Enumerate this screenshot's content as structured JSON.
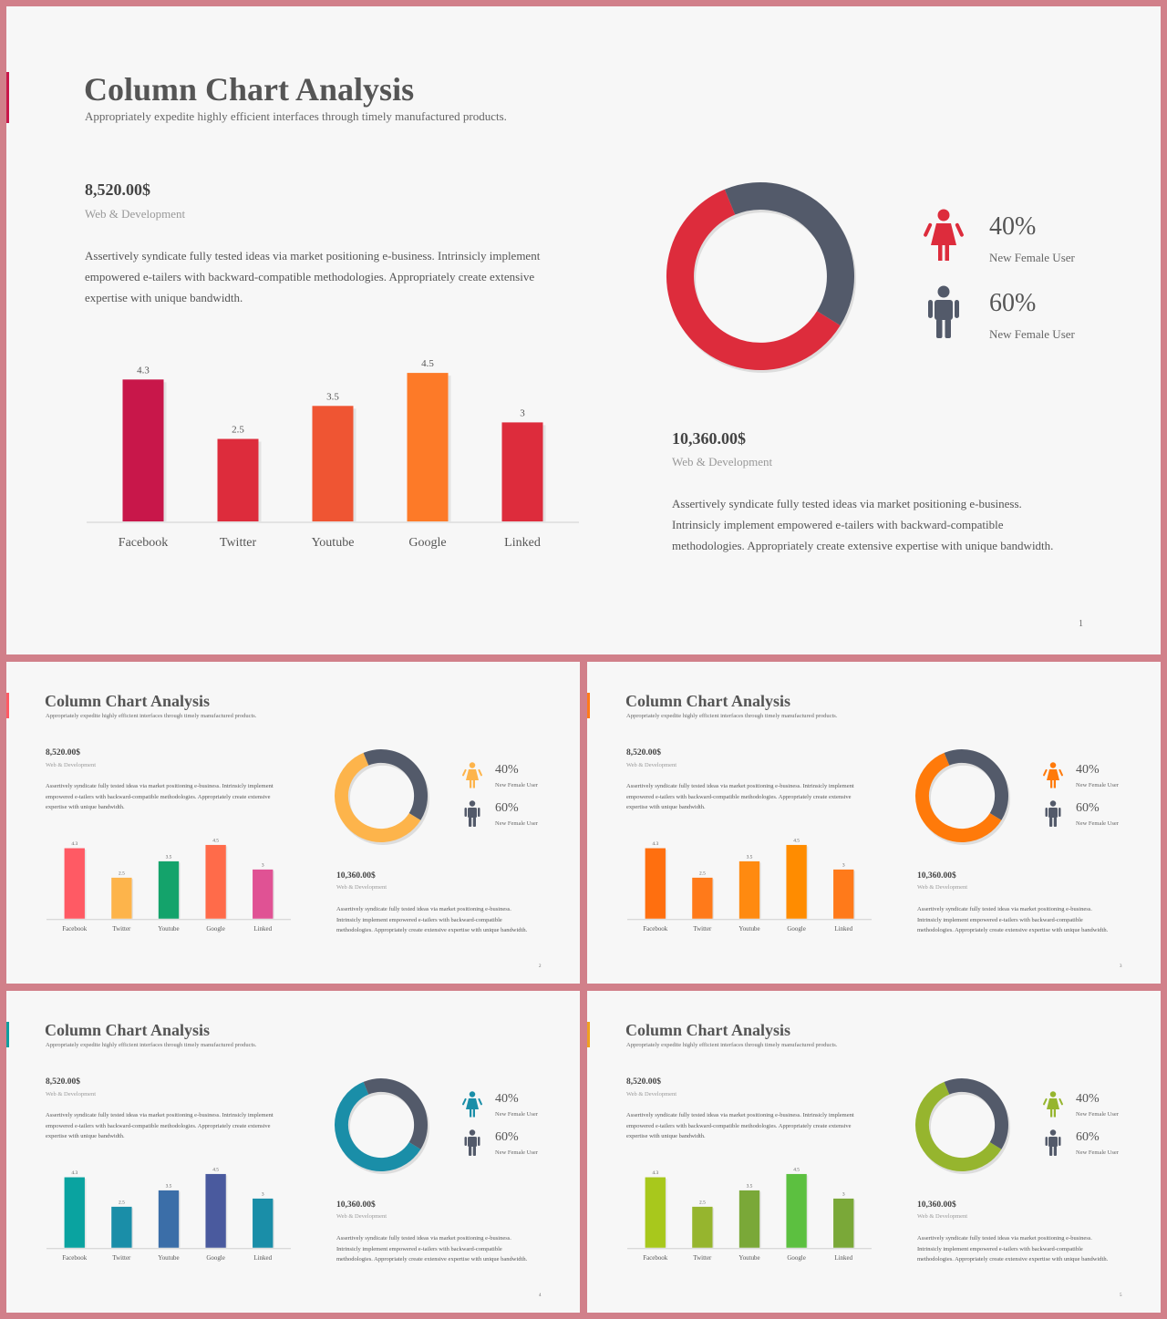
{
  "slides": [
    {
      "title": "Column Chart Analysis",
      "subtitle": "Appropriately expedite highly efficient interfaces through timely manufactured products.",
      "left": {
        "amount": "8,520.00$",
        "category": "Web & Development",
        "paragraph": "Assertively syndicate fully tested ideas via market positioning e-business. Intrinsicly implement empowered e-tailers with backward-compatible methodologies. Appropriately create extensive expertise with unique bandwidth."
      },
      "right": {
        "amount": "10,360.00$",
        "category": "Web & Development",
        "paragraph": "Assertively syndicate fully tested ideas via market positioning e-business. Intrinsicly implement empowered e-tailers with backward-compatible methodologies. Appropriately create extensive expertise with unique bandwidth."
      },
      "legend": [
        {
          "percent": "40%",
          "label": "New Female User",
          "icon": "female-user-icon"
        },
        {
          "percent": "60%",
          "label": "New Female User",
          "icon": "male-user-icon"
        }
      ],
      "page_number": "1",
      "colors": {
        "accent": "#c8174a",
        "bars": [
          "#c8174a",
          "#dd2c3c",
          "#ef5533",
          "#fd7a28",
          "#dd2c3c"
        ],
        "donut_main": "#dd2c3c",
        "donut_rest": "#535a6a",
        "female_icon": "#dd2c3c",
        "male_icon": "#535a6a"
      }
    },
    {
      "title": "Column Chart Analysis",
      "subtitle": "Appropriately expedite highly efficient interfaces through timely manufactured products.",
      "left": {
        "amount": "8,520.00$",
        "category": "Web & Development",
        "paragraph": "Assertively syndicate fully tested ideas via market positioning e-business. Intrinsicly implement empowered e-tailers with backward-compatible methodologies. Appropriately create extensive expertise with unique bandwidth."
      },
      "right": {
        "amount": "10,360.00$",
        "category": "Web & Development",
        "paragraph": "Assertively syndicate fully tested ideas via market positioning e-business. Intrinsicly implement empowered e-tailers with backward-compatible methodologies. Appropriately create extensive expertise with unique bandwidth."
      },
      "legend": [
        {
          "percent": "40%",
          "label": "New Female User",
          "icon": "female-user-icon"
        },
        {
          "percent": "60%",
          "label": "New Female User",
          "icon": "male-user-icon"
        }
      ],
      "page_number": "2",
      "colors": {
        "accent": "#ff5a64",
        "bars": [
          "#ff5a64",
          "#fdb44b",
          "#14a36b",
          "#ff6b4a",
          "#e05294"
        ],
        "donut_main": "#fdb44b",
        "donut_rest": "#535a6a",
        "female_icon": "#fdb44b",
        "male_icon": "#535a6a"
      }
    },
    {
      "title": "Column Chart Analysis",
      "subtitle": "Appropriately expedite highly efficient interfaces through timely manufactured products.",
      "left": {
        "amount": "8,520.00$",
        "category": "Web & Development",
        "paragraph": "Assertively syndicate fully tested ideas via market positioning e-business. Intrinsicly implement empowered e-tailers with backward-compatible methodologies. Appropriately create extensive expertise with unique bandwidth."
      },
      "right": {
        "amount": "10,360.00$",
        "category": "Web & Development",
        "paragraph": "Assertively syndicate fully tested ideas via market positioning e-business. Intrinsicly implement empowered e-tailers with backward-compatible methodologies. Appropriately create extensive expertise with unique bandwidth."
      },
      "legend": [
        {
          "percent": "40%",
          "label": "New Female User",
          "icon": "female-user-icon"
        },
        {
          "percent": "60%",
          "label": "New Female User",
          "icon": "male-user-icon"
        }
      ],
      "page_number": "3",
      "colors": {
        "accent": "#ff7a1a",
        "bars": [
          "#ff6f0f",
          "#ff7a1a",
          "#ff8a10",
          "#ff8c00",
          "#ff7a1a"
        ],
        "donut_main": "#ff7a0a",
        "donut_rest": "#535a6a",
        "female_icon": "#ff7a0a",
        "male_icon": "#535a6a"
      }
    },
    {
      "title": "Column Chart Analysis",
      "subtitle": "Appropriately expedite highly efficient interfaces through timely manufactured products.",
      "left": {
        "amount": "8,520.00$",
        "category": "Web & Development",
        "paragraph": "Assertively syndicate fully tested ideas via market positioning e-business. Intrinsicly implement empowered e-tailers with backward-compatible methodologies. Appropriately create extensive expertise with unique bandwidth."
      },
      "right": {
        "amount": "10,360.00$",
        "category": "Web & Development",
        "paragraph": "Assertively syndicate fully tested ideas via market positioning e-business. Intrinsicly implement empowered e-tailers with backward-compatible methodologies. Appropriately create extensive expertise with unique bandwidth."
      },
      "legend": [
        {
          "percent": "40%",
          "label": "New Female User",
          "icon": "female-user-icon"
        },
        {
          "percent": "60%",
          "label": "New Female User",
          "icon": "male-user-icon"
        }
      ],
      "page_number": "4",
      "colors": {
        "accent": "#109f9f",
        "bars": [
          "#0aa3a0",
          "#1a8ea8",
          "#3b6ea8",
          "#4a5a9e",
          "#1a8ea8"
        ],
        "donut_main": "#1a8ea8",
        "donut_rest": "#535a6a",
        "female_icon": "#1a8ea8",
        "male_icon": "#535a6a"
      }
    },
    {
      "title": "Column Chart Analysis",
      "subtitle": "Appropriately expedite highly efficient interfaces through timely manufactured products.",
      "left": {
        "amount": "8,520.00$",
        "category": "Web & Development",
        "paragraph": "Assertively syndicate fully tested ideas via market positioning e-business. Intrinsicly implement empowered e-tailers with backward-compatible methodologies. Appropriately create extensive expertise with unique bandwidth."
      },
      "right": {
        "amount": "10,360.00$",
        "category": "Web & Development",
        "paragraph": "Assertively syndicate fully tested ideas via market positioning e-business. Intrinsicly implement empowered e-tailers with backward-compatible methodologies. Appropriately create extensive expertise with unique bandwidth."
      },
      "legend": [
        {
          "percent": "40%",
          "label": "New Female User",
          "icon": "female-user-icon"
        },
        {
          "percent": "60%",
          "label": "New Female User",
          "icon": "male-user-icon"
        }
      ],
      "page_number": "5",
      "colors": {
        "accent": "#f0a020",
        "bars": [
          "#a8c81c",
          "#96b52e",
          "#7aa838",
          "#5cc040",
          "#7aa838"
        ],
        "donut_main": "#96b52e",
        "donut_rest": "#535a6a",
        "female_icon": "#96b52e",
        "male_icon": "#535a6a"
      }
    }
  ],
  "chart_data": [
    {
      "type": "bar",
      "categories": [
        "Facebook",
        "Twitter",
        "Youtube",
        "Google",
        "Linked"
      ],
      "values": [
        4.3,
        2.5,
        3.5,
        4.5,
        3
      ],
      "value_labels": [
        "4.3",
        "2.5",
        "3.5",
        "4.5",
        "3"
      ],
      "ylim": [
        0,
        5
      ],
      "grid": false
    },
    {
      "type": "pie",
      "categories": [
        "New Female User",
        "New Female User"
      ],
      "values": [
        60,
        40
      ],
      "donut": true
    }
  ]
}
